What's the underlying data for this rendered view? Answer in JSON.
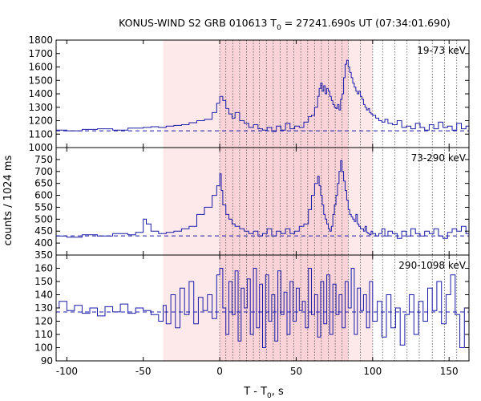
{
  "chart_data": {
    "type": "line",
    "title_main": "KONUS-WIND S2 GRB 010613 T",
    "title_sub": "0",
    "title_rest": " = 27241.690s UT (07:34:01.690)",
    "xlabel_main": "T - T",
    "xlabel_sub": "0",
    "xlabel_rest": ", s",
    "ylabel": "counts / 1024 ms",
    "xlim": [
      -107,
      163
    ],
    "x_ticks": [
      -100,
      -50,
      0,
      50,
      100,
      150
    ],
    "x_tick_labels": [
      "-100",
      "-50",
      "0",
      "50",
      "100",
      "150"
    ],
    "shaded_light": [
      -37,
      100
    ],
    "shaded_dark": [
      0,
      84
    ],
    "interval_lines": [
      0,
      4,
      8.5,
      13,
      17.5,
      22,
      26,
      30.5,
      35,
      39.5,
      44,
      48.5,
      53,
      57.5,
      62,
      66.5,
      71,
      75.5,
      80,
      84,
      92,
      100,
      106.5,
      114.5,
      122.5,
      130.5,
      139,
      147,
      155
    ],
    "colors": {
      "series": "#1a1aa8",
      "shade_light": "#fde8ea",
      "shade_dark": "#fad3d8",
      "grid": "#555555"
    },
    "panels": [
      {
        "label": "19-73 keV",
        "ylim": [
          1000,
          1800
        ],
        "y_ticks": [
          1000,
          1100,
          1200,
          1300,
          1400,
          1500,
          1600,
          1700,
          1800
        ],
        "y_tick_labels": [
          "1000",
          "1100",
          "1200",
          "1300",
          "1400",
          "1500",
          "1600",
          "1700",
          "1800"
        ],
        "background": 1125,
        "series": {
          "x": [
            -107,
            -100,
            -90,
            -80,
            -70,
            -60,
            -50,
            -45,
            -40,
            -35,
            -30,
            -25,
            -20,
            -15,
            -10,
            -5,
            -2,
            0,
            2,
            4,
            6,
            8,
            10,
            13,
            16,
            19,
            22,
            25,
            28,
            31,
            34,
            37,
            40,
            43,
            46,
            49,
            52,
            55,
            58,
            60,
            62,
            64,
            65,
            66,
            67,
            68,
            69,
            70,
            71,
            72,
            73,
            74,
            75,
            76,
            77,
            78,
            79,
            80,
            81,
            82,
            83,
            84,
            85,
            86,
            87,
            88,
            89,
            90,
            91,
            92,
            93,
            94,
            95,
            96,
            97,
            98,
            99,
            100,
            102,
            104,
            106,
            108,
            110,
            113,
            116,
            119,
            122,
            125,
            128,
            131,
            134,
            137,
            140,
            143,
            146,
            149,
            152,
            155,
            158,
            161
          ],
          "y": [
            1130,
            1125,
            1135,
            1140,
            1130,
            1145,
            1150,
            1155,
            1150,
            1160,
            1165,
            1170,
            1185,
            1200,
            1210,
            1260,
            1330,
            1380,
            1350,
            1290,
            1250,
            1220,
            1260,
            1200,
            1180,
            1150,
            1170,
            1140,
            1130,
            1150,
            1120,
            1160,
            1130,
            1180,
            1140,
            1160,
            1150,
            1190,
            1230,
            1240,
            1300,
            1380,
            1440,
            1480,
            1420,
            1460,
            1400,
            1440,
            1420,
            1380,
            1350,
            1320,
            1300,
            1290,
            1320,
            1280,
            1360,
            1400,
            1520,
            1620,
            1650,
            1600,
            1560,
            1520,
            1480,
            1450,
            1420,
            1400,
            1420,
            1380,
            1360,
            1320,
            1300,
            1280,
            1290,
            1260,
            1250,
            1240,
            1220,
            1200,
            1190,
            1210,
            1180,
            1170,
            1200,
            1150,
            1160,
            1140,
            1180,
            1150,
            1130,
            1170,
            1140,
            1190,
            1150,
            1160,
            1130,
            1180,
            1140,
            1160
          ]
        }
      },
      {
        "label": "73-290 keV",
        "ylim": [
          350,
          800
        ],
        "y_ticks": [
          350,
          400,
          450,
          500,
          550,
          600,
          650,
          700,
          750
        ],
        "y_tick_labels": [
          "350",
          "400",
          "450",
          "500",
          "550",
          "600",
          "650",
          "700",
          "750"
        ],
        "background": 430,
        "series": {
          "x": [
            -107,
            -100,
            -90,
            -80,
            -70,
            -60,
            -55,
            -50,
            -48,
            -45,
            -40,
            -35,
            -30,
            -25,
            -20,
            -15,
            -10,
            -5,
            -2,
            0,
            1,
            2,
            4,
            6,
            8,
            10,
            13,
            16,
            19,
            22,
            25,
            28,
            31,
            34,
            37,
            40,
            43,
            46,
            49,
            52,
            55,
            58,
            60,
            62,
            64,
            65,
            66,
            67,
            68,
            69,
            70,
            71,
            72,
            73,
            74,
            75,
            76,
            77,
            78,
            79,
            80,
            81,
            82,
            83,
            84,
            85,
            86,
            87,
            88,
            89,
            90,
            91,
            92,
            93,
            94,
            95,
            96,
            97,
            98,
            99,
            100,
            102,
            104,
            106,
            108,
            110,
            113,
            116,
            119,
            122,
            125,
            128,
            131,
            134,
            137,
            140,
            143,
            146,
            149,
            152,
            155,
            158,
            161
          ],
          "y": [
            430,
            425,
            435,
            430,
            440,
            435,
            445,
            500,
            480,
            450,
            440,
            445,
            450,
            460,
            470,
            520,
            550,
            600,
            640,
            690,
            620,
            560,
            520,
            500,
            480,
            470,
            460,
            450,
            440,
            450,
            430,
            440,
            460,
            430,
            450,
            440,
            460,
            440,
            450,
            470,
            480,
            540,
            600,
            650,
            680,
            640,
            600,
            560,
            520,
            500,
            480,
            460,
            450,
            470,
            520,
            560,
            600,
            650,
            700,
            745,
            700,
            660,
            620,
            580,
            540,
            520,
            510,
            500,
            490,
            520,
            480,
            470,
            460,
            460,
            450,
            470,
            445,
            440,
            435,
            450,
            440,
            430,
            440,
            460,
            430,
            450,
            440,
            420,
            450,
            430,
            460,
            440,
            430,
            450,
            440,
            460,
            430,
            420,
            445,
            460,
            450,
            470,
            440
          ]
        }
      },
      {
        "label": "290-1098 keV",
        "ylim": [
          90,
          170
        ],
        "y_ticks": [
          90,
          100,
          110,
          120,
          130,
          140,
          150,
          160
        ],
        "y_tick_labels": [
          "90",
          "100",
          "110",
          "120",
          "130",
          "140",
          "150",
          "160"
        ],
        "background": 127,
        "series": {
          "x": [
            -107,
            -105,
            -100,
            -95,
            -90,
            -85,
            -80,
            -75,
            -70,
            -65,
            -60,
            -55,
            -50,
            -45,
            -40,
            -37,
            -35,
            -32,
            -29,
            -26,
            -23,
            -20,
            -17,
            -14,
            -11,
            -8,
            -5,
            -2,
            0,
            2,
            4,
            6,
            8,
            10,
            12,
            14,
            16,
            18,
            20,
            22,
            24,
            26,
            28,
            30,
            32,
            34,
            36,
            38,
            40,
            42,
            44,
            46,
            48,
            50,
            52,
            54,
            56,
            58,
            60,
            62,
            64,
            66,
            68,
            70,
            72,
            74,
            76,
            78,
            80,
            82,
            84,
            86,
            88,
            90,
            92,
            94,
            96,
            98,
            100,
            103,
            106,
            109,
            112,
            115,
            118,
            121,
            124,
            127,
            130,
            133,
            136,
            139,
            142,
            145,
            148,
            151,
            154,
            157,
            160
          ],
          "y": [
            130,
            135,
            128,
            132,
            126,
            130,
            124,
            131,
            127,
            133,
            126,
            130,
            128,
            125,
            120,
            132,
            118,
            140,
            115,
            145,
            125,
            150,
            118,
            138,
            128,
            140,
            122,
            155,
            160,
            130,
            110,
            150,
            125,
            158,
            105,
            145,
            130,
            152,
            110,
            160,
            115,
            148,
            100,
            155,
            120,
            140,
            105,
            158,
            125,
            142,
            110,
            150,
            120,
            145,
            128,
            135,
            115,
            160,
            125,
            140,
            108,
            150,
            118,
            155,
            110,
            148,
            125,
            140,
            115,
            150,
            130,
            160,
            110,
            145,
            128,
            140,
            115,
            150,
            120,
            135,
            108,
            140,
            115,
            130,
            102,
            125,
            140,
            110,
            135,
            120,
            145,
            128,
            150,
            118,
            140,
            155,
            125,
            100,
            130
          ]
        }
      }
    ]
  }
}
